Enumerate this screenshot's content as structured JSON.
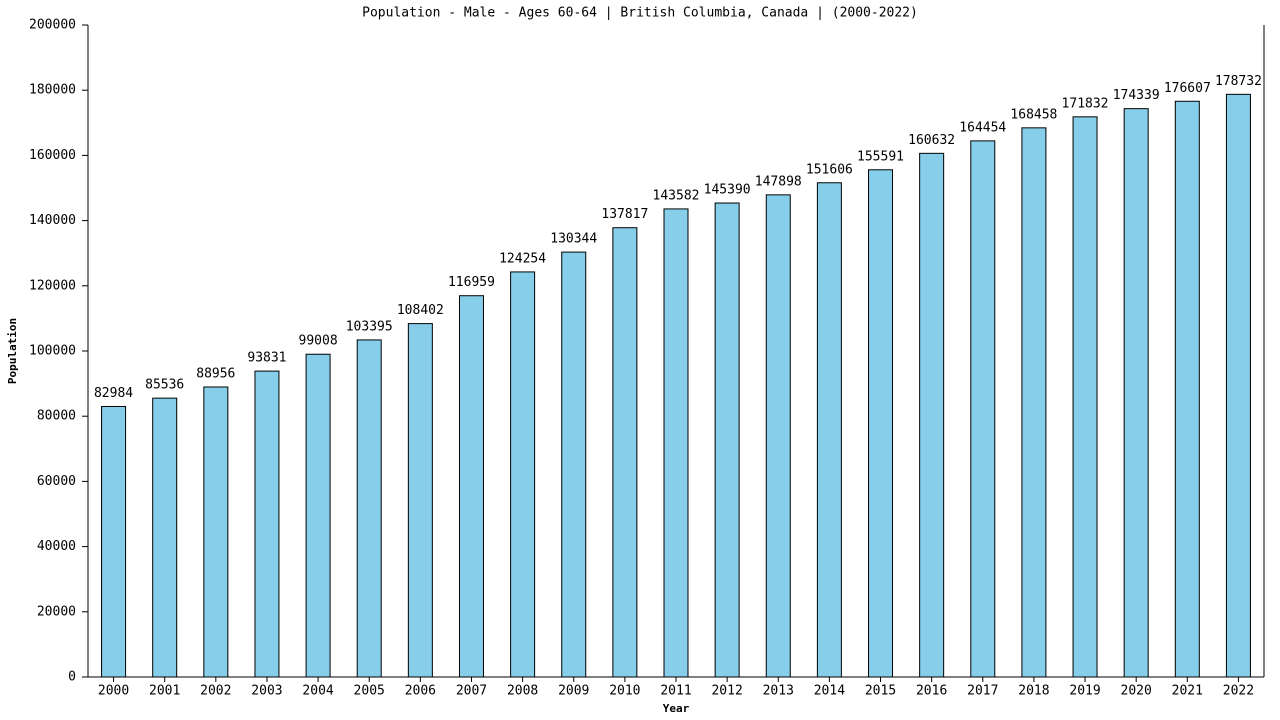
{
  "chart_data": {
    "type": "bar",
    "title": "Population - Male - Ages 60-64 | British Columbia, Canada |  (2000-2022)",
    "x_label": "Year",
    "y_label": "Population",
    "categories": [
      "2000",
      "2001",
      "2002",
      "2003",
      "2004",
      "2005",
      "2006",
      "2007",
      "2008",
      "2009",
      "2010",
      "2011",
      "2012",
      "2013",
      "2014",
      "2015",
      "2016",
      "2017",
      "2018",
      "2019",
      "2020",
      "2021",
      "2022"
    ],
    "values": [
      82984,
      85536,
      88956,
      93831,
      99008,
      103395,
      108402,
      116959,
      124254,
      130344,
      137817,
      143582,
      145390,
      147898,
      151606,
      155591,
      160632,
      164454,
      168458,
      171832,
      174339,
      176607,
      178732
    ],
    "color": "#87ceeb",
    "ylim": [
      0,
      200000
    ],
    "yticks": [
      0,
      20000,
      40000,
      60000,
      80000,
      100000,
      120000,
      140000,
      160000,
      180000,
      200000
    ],
    "grid": false
  }
}
